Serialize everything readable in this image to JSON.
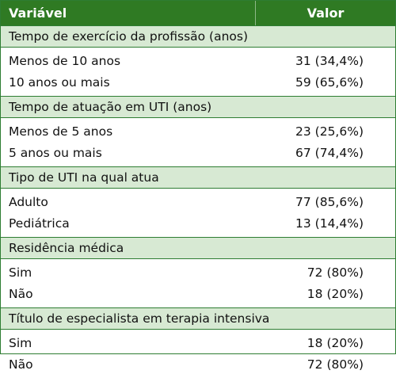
{
  "header": {
    "col_variable": "Variável",
    "col_value": "Valor"
  },
  "sections": [
    {
      "title": "Tempo de exercício da profissão (anos)",
      "rows": [
        {
          "label": "Menos de 10 anos",
          "value": "31 (34,4%)"
        },
        {
          "label": "10 anos ou mais",
          "value": "59 (65,6%)"
        }
      ]
    },
    {
      "title": "Tempo de atuação em UTI (anos)",
      "rows": [
        {
          "label": "Menos de 5 anos",
          "value": "23 (25,6%)"
        },
        {
          "label": "5 anos ou mais",
          "value": "67 (74,4%)"
        }
      ]
    },
    {
      "title": "Tipo de UTI na qual atua",
      "rows": [
        {
          "label": "Adulto",
          "value": "77 (85,6%)"
        },
        {
          "label": "Pediátrica",
          "value": "13 (14,4%)"
        }
      ]
    },
    {
      "title": "Residência médica",
      "rows": [
        {
          "label": "Sim",
          "value": "72 (80%)"
        },
        {
          "label": "Não",
          "value": "18 (20%)"
        }
      ]
    },
    {
      "title": "Título de especialista em terapia intensiva",
      "rows": [
        {
          "label": "Sim",
          "value": "18 (20%)"
        },
        {
          "label": "Não",
          "value": "72 (80%)"
        }
      ]
    }
  ]
}
